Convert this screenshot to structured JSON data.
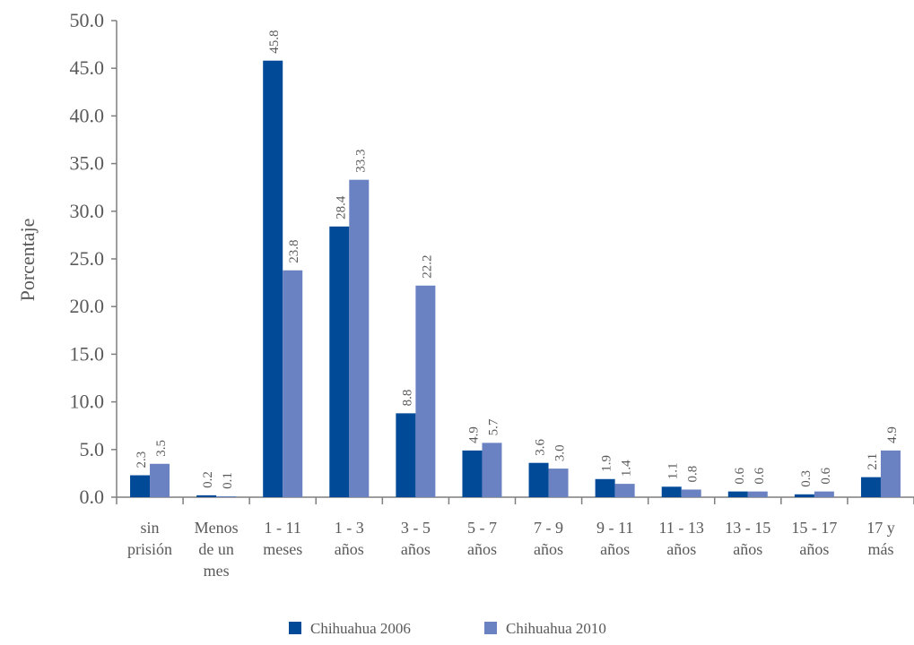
{
  "chart_data": {
    "type": "bar",
    "title": "",
    "xlabel": "",
    "ylabel": "Porcentaje",
    "ylim": [
      0,
      50
    ],
    "yticks": [
      "0.0",
      "5.0",
      "10.0",
      "15.0",
      "20.0",
      "25.0",
      "30.0",
      "35.0",
      "40.0",
      "45.0",
      "50.0"
    ],
    "grid": false,
    "legend_position": "bottom",
    "categories": [
      [
        "sin",
        "prisión"
      ],
      [
        "Menos",
        "de un",
        "mes"
      ],
      [
        "1 - 11",
        "meses"
      ],
      [
        "1 - 3",
        "años"
      ],
      [
        "3 - 5",
        "años"
      ],
      [
        "5 - 7",
        "años"
      ],
      [
        "7 - 9",
        "años"
      ],
      [
        "9 - 11",
        "años"
      ],
      [
        "11 - 13",
        "años"
      ],
      [
        "13 - 15",
        "años"
      ],
      [
        "15 - 17",
        "años"
      ],
      [
        "17 y",
        "más"
      ]
    ],
    "series": [
      {
        "name": "Chihuahua 2006",
        "color": "#004a98",
        "values": [
          2.3,
          0.2,
          45.8,
          28.4,
          8.8,
          4.9,
          3.6,
          1.9,
          1.1,
          0.6,
          0.3,
          2.1
        ],
        "labels": [
          "2.3",
          "0.2",
          "45.8",
          "28.4",
          "8.8",
          "4.9",
          "3.6",
          "1.9",
          "1.1",
          "0.6",
          "0.3",
          "2.1"
        ]
      },
      {
        "name": "Chihuahua 2010",
        "color": "#6b82c2",
        "values": [
          3.5,
          0.1,
          23.8,
          33.3,
          22.2,
          5.7,
          3.0,
          1.4,
          0.8,
          0.6,
          0.6,
          4.9
        ],
        "labels": [
          "3.5",
          "0.1",
          "23.8",
          "33.3",
          "22.2",
          "5.7",
          "3.0",
          "1.4",
          "0.8",
          "0.6",
          "0.6",
          "4.9"
        ]
      }
    ]
  }
}
